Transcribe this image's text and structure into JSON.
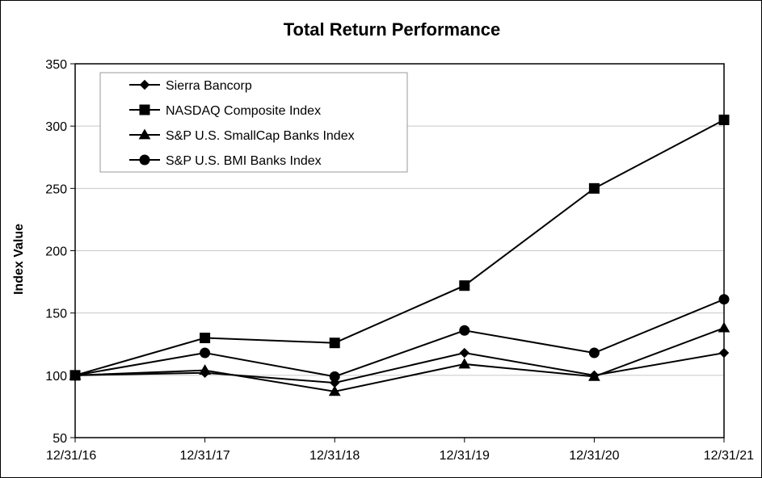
{
  "chart_data": {
    "type": "line",
    "title": "Total Return Performance",
    "xlabel": "",
    "ylabel": "Index Value",
    "categories": [
      "12/31/16",
      "12/31/17",
      "12/31/18",
      "12/31/19",
      "12/31/20",
      "12/31/21"
    ],
    "ylim": [
      50,
      350
    ],
    "yticks": [
      50,
      100,
      150,
      200,
      250,
      300,
      350
    ],
    "grid": "horizontal",
    "legend_position": "top-left",
    "line_color": "#000000",
    "series": [
      {
        "name": "Sierra Bancorp",
        "marker": "diamond",
        "values": [
          100,
          102,
          94,
          118,
          100,
          118
        ]
      },
      {
        "name": "NASDAQ Composite Index",
        "marker": "square",
        "values": [
          100,
          130,
          126,
          172,
          250,
          305
        ]
      },
      {
        "name": "S&P U.S. SmallCap Banks Index",
        "marker": "triangle",
        "values": [
          100,
          104,
          87,
          109,
          99,
          138
        ]
      },
      {
        "name": "S&P U.S. BMI Banks Index",
        "marker": "circle",
        "values": [
          100,
          118,
          99,
          136,
          118,
          161
        ]
      }
    ]
  }
}
